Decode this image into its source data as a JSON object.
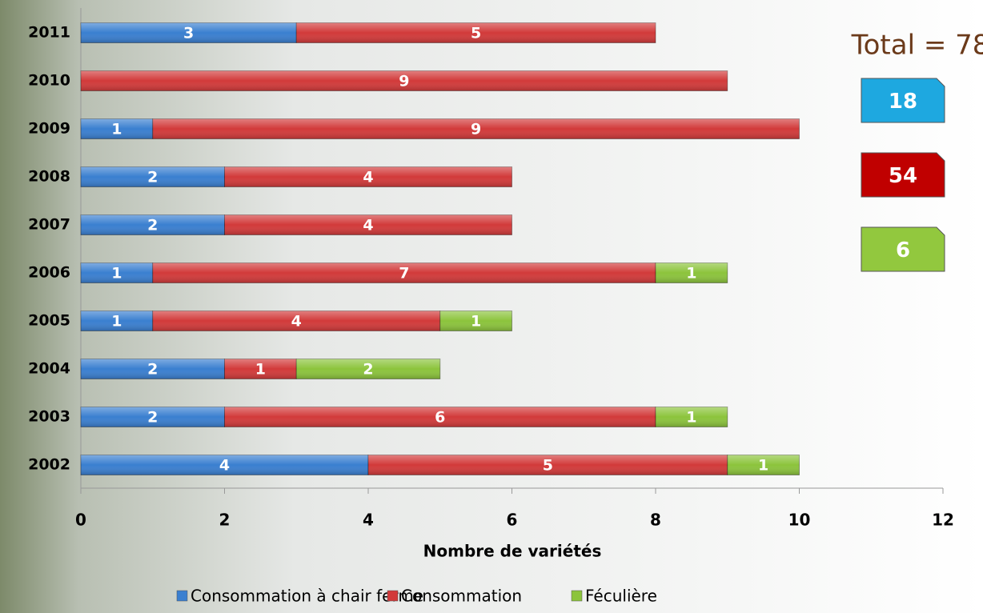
{
  "chart_data": {
    "type": "stacked-barh",
    "categories": [
      "2011",
      "2010",
      "2009",
      "2008",
      "2007",
      "2006",
      "2005",
      "2004",
      "2003",
      "2002"
    ],
    "series": [
      {
        "name": "Consommation à chair ferme",
        "color": "#3a7fd0",
        "values": [
          3,
          null,
          1,
          2,
          2,
          1,
          1,
          2,
          2,
          4
        ],
        "total": 18,
        "total_color": "#1ea8e0"
      },
      {
        "name": "Consommation",
        "color": "#d23a3a",
        "values": [
          5,
          9,
          9,
          4,
          4,
          7,
          4,
          1,
          6,
          5
        ],
        "total": 54,
        "total_color": "#c00000"
      },
      {
        "name": "Féculière",
        "color": "#8cc43c",
        "values": [
          null,
          null,
          null,
          null,
          null,
          1,
          1,
          2,
          1,
          1
        ],
        "total": 6,
        "total_color": "#92c83e"
      }
    ],
    "xlabel": "Nombre de variétés",
    "xlim": [
      0,
      12
    ],
    "xticks": [
      0,
      2,
      4,
      6,
      8,
      10,
      12
    ],
    "annotation": "Total = 78",
    "legend": "bottom"
  }
}
